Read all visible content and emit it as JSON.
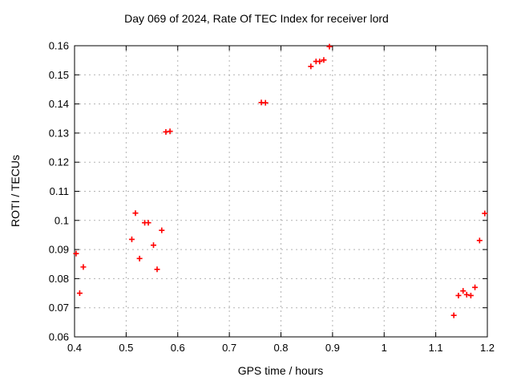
{
  "chart_data": {
    "type": "scatter",
    "title": "Day 069 of 2024, Rate Of TEC Index for receiver lord",
    "xlabel": "GPS time / hours",
    "ylabel": "ROTI / TECUs",
    "xlim": [
      0.4,
      1.2
    ],
    "ylim": [
      0.06,
      0.16
    ],
    "xtick_values": [
      0.4,
      0.5,
      0.6,
      0.7,
      0.8,
      0.9,
      1.0,
      1.1,
      1.2
    ],
    "xtick_labels": [
      "0.4",
      "0.5",
      "0.6",
      "0.7",
      "0.8",
      "0.9",
      "1",
      "1.1",
      "1.2"
    ],
    "ytick_values": [
      0.06,
      0.07,
      0.08,
      0.09,
      0.1,
      0.11,
      0.12,
      0.13,
      0.14,
      0.15,
      0.16
    ],
    "ytick_labels": [
      "0.06",
      "0.07",
      "0.08",
      "0.09",
      "0.1",
      "0.11",
      "0.12",
      "0.13",
      "0.14",
      "0.15",
      "0.16"
    ],
    "grid": true,
    "legend": "none",
    "marker": {
      "shape": "plus",
      "color": "#ff0000",
      "size": 7
    },
    "grid_color": "#b3b3b3",
    "axis_color": "#000000",
    "series": [
      {
        "name": "ROTI",
        "points": [
          [
            0.403,
            0.0886
          ],
          [
            0.41,
            0.075
          ],
          [
            0.417,
            0.084
          ],
          [
            0.511,
            0.0935
          ],
          [
            0.518,
            0.1025
          ],
          [
            0.526,
            0.0869
          ],
          [
            0.536,
            0.0992
          ],
          [
            0.543,
            0.0992
          ],
          [
            0.553,
            0.0915
          ],
          [
            0.56,
            0.0832
          ],
          [
            0.569,
            0.0966
          ],
          [
            0.577,
            0.1304
          ],
          [
            0.585,
            0.1306
          ],
          [
            0.762,
            0.1405
          ],
          [
            0.77,
            0.1404
          ],
          [
            0.858,
            0.1529
          ],
          [
            0.868,
            0.1546
          ],
          [
            0.875,
            0.1546
          ],
          [
            0.883,
            0.1551
          ],
          [
            0.894,
            0.1597
          ],
          [
            1.135,
            0.0674
          ],
          [
            1.144,
            0.0742
          ],
          [
            1.153,
            0.0758
          ],
          [
            1.16,
            0.0745
          ],
          [
            1.168,
            0.0742
          ],
          [
            1.176,
            0.077
          ],
          [
            1.185,
            0.0931
          ],
          [
            1.195,
            0.1024
          ]
        ]
      }
    ]
  }
}
